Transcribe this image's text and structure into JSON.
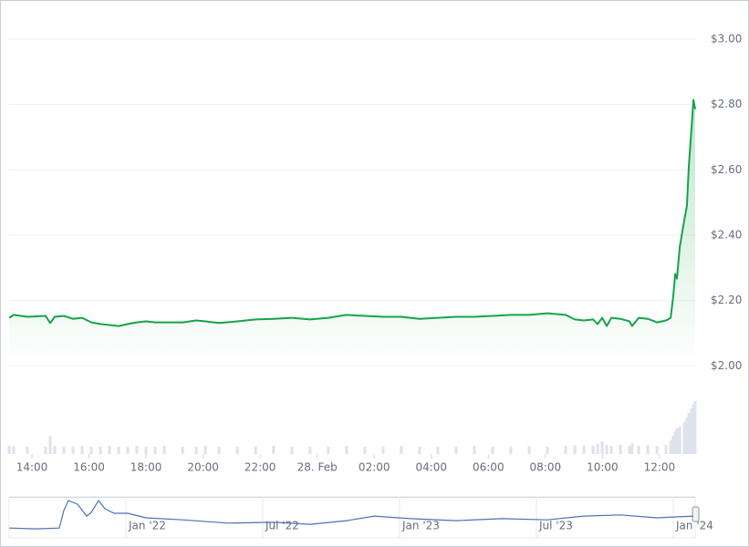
{
  "chart_data": [
    {
      "type": "line",
      "x": [
        13.2,
        13.36,
        13.84,
        14.48,
        14.64,
        14.8,
        15.12,
        15.44,
        15.76,
        16.08,
        16.4,
        16.72,
        17.04,
        17.36,
        17.68,
        18.0,
        18.32,
        18.64,
        19.28,
        19.76,
        20.08,
        20.56,
        21.2,
        21.84,
        22.47,
        23.11,
        23.75,
        24.39,
        25.03,
        25.67,
        26.31,
        26.95,
        27.59,
        28.23,
        28.87,
        29.51,
        30.15,
        30.79,
        31.43,
        32.07,
        32.71,
        33.03,
        33.35,
        33.67,
        33.83,
        33.99,
        34.15,
        34.31,
        34.63,
        34.95,
        35.04,
        35.27,
        35.59,
        35.91,
        36.23,
        36.39,
        36.48,
        36.55,
        36.61,
        36.71,
        36.87,
        36.96,
        37.03,
        37.12,
        37.19,
        37.25
      ],
      "series": [
        {
          "color": "#16a34a",
          "values": [
            2.147,
            2.156,
            2.15,
            2.153,
            2.131,
            2.15,
            2.153,
            2.144,
            2.147,
            2.133,
            2.128,
            2.125,
            2.122,
            2.128,
            2.133,
            2.136,
            2.133,
            2.133,
            2.133,
            2.139,
            2.136,
            2.131,
            2.136,
            2.142,
            2.144,
            2.147,
            2.142,
            2.147,
            2.156,
            2.153,
            2.15,
            2.15,
            2.144,
            2.147,
            2.15,
            2.15,
            2.153,
            2.156,
            2.156,
            2.161,
            2.156,
            2.142,
            2.139,
            2.142,
            2.128,
            2.147,
            2.122,
            2.147,
            2.144,
            2.136,
            2.122,
            2.147,
            2.144,
            2.133,
            2.139,
            2.147,
            2.211,
            2.281,
            2.267,
            2.364,
            2.447,
            2.489,
            2.614,
            2.725,
            2.814,
            2.786
          ]
        },
        {
          "type": "bar",
          "axis": "y2",
          "color": "#dde2ec",
          "values": [
            9,
            9,
            8,
            8,
            20,
            9,
            8,
            8,
            9,
            8,
            8,
            9,
            8,
            8,
            9,
            8,
            8,
            9,
            8,
            8,
            9,
            8,
            8,
            8,
            9,
            8,
            8,
            8,
            9,
            8,
            8,
            9,
            8,
            8,
            8,
            9,
            8,
            8,
            9,
            8,
            9,
            10,
            9,
            9,
            11,
            14,
            10,
            9,
            10,
            9,
            12,
            9,
            10,
            9,
            10,
            15,
            20,
            25,
            28,
            30,
            35,
            40,
            45,
            50,
            55,
            58
          ]
        }
      ],
      "xlim": [
        13.2,
        37.25
      ],
      "xticks": [
        {
          "value": 14,
          "label": "14:00"
        },
        {
          "value": 16,
          "label": "16:00"
        },
        {
          "value": 18,
          "label": "18:00"
        },
        {
          "value": 20,
          "label": "20:00"
        },
        {
          "value": 22,
          "label": "22:00"
        },
        {
          "value": 24,
          "label": "28. Feb"
        },
        {
          "value": 26,
          "label": "02:00"
        },
        {
          "value": 28,
          "label": "04:00"
        },
        {
          "value": 30,
          "label": "06:00"
        },
        {
          "value": 32,
          "label": "08:00"
        },
        {
          "value": 34,
          "label": "10:00"
        },
        {
          "value": 36,
          "label": "12:00"
        }
      ],
      "ylim": [
        1.73,
        3.12
      ],
      "yticks": [
        {
          "value": 2.0,
          "label": "$2.00"
        },
        {
          "value": 2.2,
          "label": "$2.20"
        },
        {
          "value": 2.4,
          "label": "$2.40"
        },
        {
          "value": 2.6,
          "label": "$2.60"
        },
        {
          "value": 2.8,
          "label": "$2.80"
        },
        {
          "value": 3.0,
          "label": "$3.00"
        }
      ],
      "y2lim": [
        0,
        60
      ],
      "grid": true
    },
    {
      "type": "line",
      "x": [
        6.88,
        8.08,
        9.08,
        9.28,
        9.48,
        9.88,
        10.28,
        10.48,
        10.8,
        11.08,
        11.48,
        12.08,
        12.88,
        14.48,
        16.48,
        18.48,
        20.08,
        21.68,
        22.88,
        24.48,
        26.48,
        28.48,
        30.48,
        32.08,
        33.68,
        35.28,
        36.88
      ],
      "values": [
        24,
        22,
        24,
        67,
        91,
        82,
        53,
        62,
        91,
        71,
        60,
        60,
        49,
        44,
        36,
        38,
        33,
        42,
        53,
        47,
        42,
        47,
        44,
        53,
        56,
        49,
        53
      ],
      "color": "#4a72b8",
      "xlim": [
        6.88,
        36.96
      ],
      "xticks": [
        {
          "value": 12,
          "label": "Jan '22"
        },
        {
          "value": 18,
          "label": "Jul '22"
        },
        {
          "value": 24,
          "label": "Jan '23"
        },
        {
          "value": 30,
          "label": "Jul '23"
        },
        {
          "value": 36,
          "label": "Jan '24"
        }
      ],
      "ylim": [
        0,
        100
      ]
    }
  ]
}
